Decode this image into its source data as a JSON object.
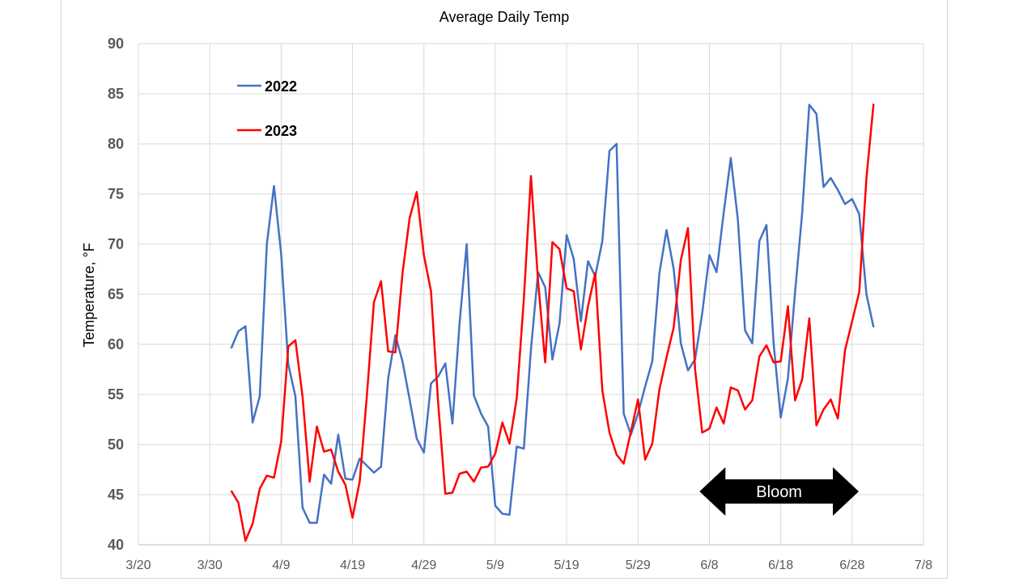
{
  "chart_data": {
    "type": "line",
    "title": "Average Daily Temp",
    "xlabel": "",
    "ylabel": "Temperature, °F",
    "x_ticks": [
      "3/20",
      "3/30",
      "4/9",
      "4/19",
      "4/29",
      "5/9",
      "5/19",
      "5/29",
      "6/8",
      "6/18",
      "6/28",
      "7/8"
    ],
    "y_ticks": [
      "40",
      "45",
      "50",
      "55",
      "60",
      "65",
      "70",
      "75",
      "80",
      "85",
      "90"
    ],
    "ylim": [
      40,
      90
    ],
    "xlim": [
      "3/20",
      "7/8"
    ],
    "grid": true,
    "legend_position": "top-left",
    "annotation": {
      "text": "Bloom",
      "from": "6/9",
      "to": "6/27",
      "y": 45,
      "color": "#000000"
    },
    "series": [
      {
        "name": "2022",
        "color": "#4472c4",
        "points": [
          [
            "4/2",
            59.6
          ],
          [
            "4/3",
            61.3
          ],
          [
            "4/4",
            61.8
          ],
          [
            "4/5",
            52.2
          ],
          [
            "4/6",
            54.8
          ],
          [
            "4/7",
            70.0
          ],
          [
            "4/8",
            75.8
          ],
          [
            "4/9",
            69.0
          ],
          [
            "4/10",
            58.0
          ],
          [
            "4/11",
            54.8
          ],
          [
            "4/12",
            43.7
          ],
          [
            "4/13",
            42.2
          ],
          [
            "4/14",
            42.2
          ],
          [
            "4/15",
            47.0
          ],
          [
            "4/16",
            46.1
          ],
          [
            "4/17",
            51.0
          ],
          [
            "4/18",
            46.6
          ],
          [
            "4/19",
            46.5
          ],
          [
            "4/20",
            48.6
          ],
          [
            "4/21",
            47.9
          ],
          [
            "4/22",
            47.2
          ],
          [
            "4/23",
            47.8
          ],
          [
            "4/24",
            56.6
          ],
          [
            "4/25",
            60.9
          ],
          [
            "4/26",
            58.3
          ],
          [
            "4/27",
            54.5
          ],
          [
            "4/28",
            50.6
          ],
          [
            "4/29",
            49.2
          ],
          [
            "4/30",
            56.1
          ],
          [
            "5/1",
            56.8
          ],
          [
            "5/2",
            58.1
          ],
          [
            "5/3",
            52.1
          ],
          [
            "5/4",
            62.1
          ],
          [
            "5/5",
            70.0
          ],
          [
            "5/6",
            54.9
          ],
          [
            "5/7",
            53.1
          ],
          [
            "5/8",
            51.8
          ],
          [
            "5/9",
            43.9
          ],
          [
            "5/10",
            43.1
          ],
          [
            "5/11",
            43.0
          ],
          [
            "5/12",
            49.8
          ],
          [
            "5/13",
            49.6
          ],
          [
            "5/14",
            59.5
          ],
          [
            "5/15",
            67.2
          ],
          [
            "5/16",
            65.7
          ],
          [
            "5/17",
            58.5
          ],
          [
            "5/18",
            62.1
          ],
          [
            "5/19",
            70.9
          ],
          [
            "5/20",
            68.5
          ],
          [
            "5/21",
            62.3
          ],
          [
            "5/22",
            68.3
          ],
          [
            "5/23",
            66.8
          ],
          [
            "5/24",
            70.3
          ],
          [
            "5/25",
            79.3
          ],
          [
            "5/26",
            80.0
          ],
          [
            "5/27",
            53.1
          ],
          [
            "5/28",
            51.0
          ],
          [
            "5/29",
            53.1
          ],
          [
            "5/30",
            55.8
          ],
          [
            "5/31",
            58.3
          ],
          [
            "6/1",
            67.1
          ],
          [
            "6/2",
            71.4
          ],
          [
            "6/3",
            67.5
          ],
          [
            "6/4",
            60.1
          ],
          [
            "6/5",
            57.4
          ],
          [
            "6/6",
            58.5
          ],
          [
            "6/7",
            63.1
          ],
          [
            "6/8",
            68.9
          ],
          [
            "6/9",
            67.2
          ],
          [
            "6/10",
            73.1
          ],
          [
            "6/11",
            78.6
          ],
          [
            "6/12",
            72.4
          ],
          [
            "6/13",
            61.4
          ],
          [
            "6/14",
            60.1
          ],
          [
            "6/15",
            70.3
          ],
          [
            "6/16",
            71.9
          ],
          [
            "6/17",
            60.1
          ],
          [
            "6/18",
            52.7
          ],
          [
            "6/19",
            56.6
          ],
          [
            "6/20",
            65.2
          ],
          [
            "6/21",
            73.1
          ],
          [
            "6/22",
            83.9
          ],
          [
            "6/23",
            83.0
          ],
          [
            "6/24",
            75.7
          ],
          [
            "6/25",
            76.6
          ],
          [
            "6/26",
            75.4
          ],
          [
            "6/27",
            74.0
          ],
          [
            "6/28",
            74.5
          ],
          [
            "6/29",
            73.0
          ],
          [
            "6/30",
            65.0
          ],
          [
            "7/1",
            61.7
          ]
        ]
      },
      {
        "name": "2023",
        "color": "#ff0000",
        "points": [
          [
            "4/2",
            45.4
          ],
          [
            "4/3",
            44.2
          ],
          [
            "4/4",
            40.4
          ],
          [
            "4/5",
            42.1
          ],
          [
            "4/6",
            45.6
          ],
          [
            "4/7",
            46.9
          ],
          [
            "4/8",
            46.7
          ],
          [
            "4/9",
            50.3
          ],
          [
            "4/10",
            59.8
          ],
          [
            "4/11",
            60.4
          ],
          [
            "4/12",
            54.8
          ],
          [
            "4/13",
            46.3
          ],
          [
            "4/14",
            51.8
          ],
          [
            "4/15",
            49.3
          ],
          [
            "4/16",
            49.5
          ],
          [
            "4/17",
            47.3
          ],
          [
            "4/18",
            46.0
          ],
          [
            "4/19",
            42.7
          ],
          [
            "4/20",
            46.3
          ],
          [
            "4/21",
            54.8
          ],
          [
            "4/22",
            64.2
          ],
          [
            "4/23",
            66.3
          ],
          [
            "4/24",
            59.3
          ],
          [
            "4/25",
            59.2
          ],
          [
            "4/26",
            67.1
          ],
          [
            "4/27",
            72.6
          ],
          [
            "4/28",
            75.2
          ],
          [
            "4/29",
            68.9
          ],
          [
            "4/30",
            65.3
          ],
          [
            "5/1",
            54.1
          ],
          [
            "5/2",
            45.1
          ],
          [
            "5/3",
            45.2
          ],
          [
            "5/4",
            47.1
          ],
          [
            "5/5",
            47.3
          ],
          [
            "5/6",
            46.3
          ],
          [
            "5/7",
            47.7
          ],
          [
            "5/8",
            47.8
          ],
          [
            "5/9",
            49.1
          ],
          [
            "5/10",
            52.2
          ],
          [
            "5/11",
            50.1
          ],
          [
            "5/12",
            54.6
          ],
          [
            "5/13",
            64.5
          ],
          [
            "5/14",
            76.8
          ],
          [
            "5/15",
            66.3
          ],
          [
            "5/16",
            58.2
          ],
          [
            "5/17",
            70.2
          ],
          [
            "5/18",
            69.5
          ],
          [
            "5/19",
            65.6
          ],
          [
            "5/20",
            65.3
          ],
          [
            "5/21",
            59.5
          ],
          [
            "5/22",
            63.8
          ],
          [
            "5/23",
            67.1
          ],
          [
            "5/24",
            55.4
          ],
          [
            "5/25",
            51.2
          ],
          [
            "5/26",
            49.0
          ],
          [
            "5/27",
            48.1
          ],
          [
            "5/28",
            51.3
          ],
          [
            "5/29",
            54.5
          ],
          [
            "5/30",
            48.5
          ],
          [
            "5/31",
            50.1
          ],
          [
            "6/1",
            55.5
          ],
          [
            "6/2",
            58.7
          ],
          [
            "6/3",
            61.7
          ],
          [
            "6/4",
            68.4
          ],
          [
            "6/5",
            71.6
          ],
          [
            "6/6",
            57.5
          ],
          [
            "6/7",
            51.2
          ],
          [
            "6/8",
            51.6
          ],
          [
            "6/9",
            53.7
          ],
          [
            "6/10",
            52.1
          ],
          [
            "6/11",
            55.7
          ],
          [
            "6/12",
            55.4
          ],
          [
            "6/13",
            53.5
          ],
          [
            "6/14",
            54.4
          ],
          [
            "6/15",
            58.8
          ],
          [
            "6/16",
            59.9
          ],
          [
            "6/17",
            58.2
          ],
          [
            "6/18",
            58.3
          ],
          [
            "6/19",
            63.8
          ],
          [
            "6/20",
            54.4
          ],
          [
            "6/21",
            56.5
          ],
          [
            "6/22",
            62.6
          ],
          [
            "6/23",
            51.9
          ],
          [
            "6/24",
            53.5
          ],
          [
            "6/25",
            54.5
          ],
          [
            "6/26",
            52.6
          ],
          [
            "6/27",
            59.4
          ],
          [
            "6/28",
            62.3
          ],
          [
            "6/29",
            65.2
          ],
          [
            "6/30",
            76.6
          ],
          [
            "7/1",
            84.0
          ]
        ]
      }
    ]
  }
}
